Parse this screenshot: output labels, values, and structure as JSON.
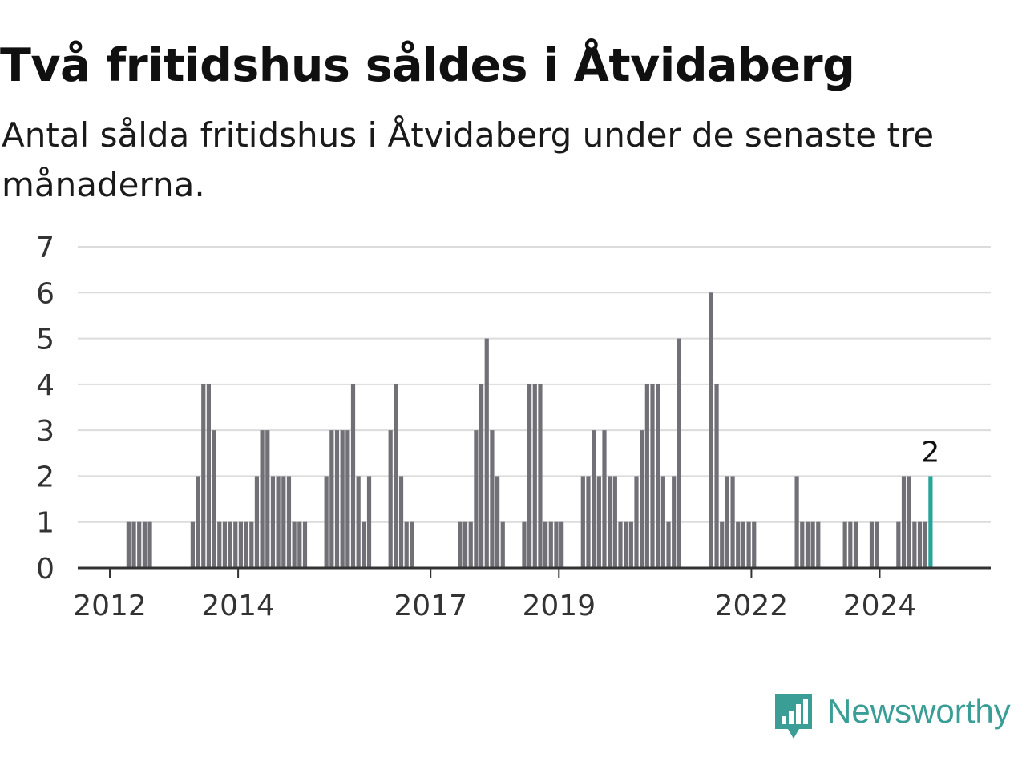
{
  "header": {
    "title": "Två fritidshus såldes i Åtvidaberg",
    "subtitle": "Antal sålda fritidshus i Åtvidaberg under de senaste tre månaderna."
  },
  "brand": {
    "name": "Newsworthy",
    "logo_icon": "bar-chart-badge-icon",
    "color": "#3a9e96"
  },
  "chart_data": {
    "type": "bar",
    "x_start": "2011-07",
    "x_end": "2024-12",
    "y_ticks": [
      "0",
      "1",
      "2",
      "3",
      "4",
      "5",
      "6",
      "7"
    ],
    "ylim": [
      0,
      7
    ],
    "grid": true,
    "x_ticks": [
      {
        "label": "2012",
        "month": "2012-01"
      },
      {
        "label": "2014",
        "month": "2014-01"
      },
      {
        "label": "2017",
        "month": "2017-01"
      },
      {
        "label": "2019",
        "month": "2019-01"
      },
      {
        "label": "2022",
        "month": "2022-01"
      },
      {
        "label": "2024",
        "month": "2024-01"
      }
    ],
    "bar_color": "#707076",
    "highlight_color": "#26a69a",
    "annotation": {
      "month": "2024-10",
      "text": "2"
    },
    "months": [
      "2012-04",
      "2012-05",
      "2012-06",
      "2012-07",
      "2012-08",
      "2013-04",
      "2013-05",
      "2013-06",
      "2013-07",
      "2013-08",
      "2013-09",
      "2013-10",
      "2013-11",
      "2013-12",
      "2014-01",
      "2014-02",
      "2014-03",
      "2014-04",
      "2014-05",
      "2014-06",
      "2014-07",
      "2014-08",
      "2014-09",
      "2014-10",
      "2014-11",
      "2014-12",
      "2015-01",
      "2015-05",
      "2015-06",
      "2015-07",
      "2015-08",
      "2015-09",
      "2015-10",
      "2015-11",
      "2015-12",
      "2016-01",
      "2016-05",
      "2016-06",
      "2016-07",
      "2016-08",
      "2016-09",
      "2017-06",
      "2017-07",
      "2017-08",
      "2017-09",
      "2017-10",
      "2017-11",
      "2017-12",
      "2018-01",
      "2018-02",
      "2018-06",
      "2018-07",
      "2018-08",
      "2018-09",
      "2018-10",
      "2018-11",
      "2018-12",
      "2019-01",
      "2019-05",
      "2019-06",
      "2019-07",
      "2019-08",
      "2019-09",
      "2019-10",
      "2019-11",
      "2019-12",
      "2020-01",
      "2020-02",
      "2020-03",
      "2020-04",
      "2020-05",
      "2020-06",
      "2020-07",
      "2020-08",
      "2020-09",
      "2020-10",
      "2020-11",
      "2021-05",
      "2021-06",
      "2021-07",
      "2021-08",
      "2021-09",
      "2021-10",
      "2021-11",
      "2021-12",
      "2022-01",
      "2022-09",
      "2022-10",
      "2022-11",
      "2022-12",
      "2023-01",
      "2023-06",
      "2023-07",
      "2023-08",
      "2023-11",
      "2023-12",
      "2024-04",
      "2024-05",
      "2024-06",
      "2024-07",
      "2024-08",
      "2024-09",
      "2024-10"
    ],
    "values": [
      1,
      1,
      1,
      1,
      1,
      1,
      2,
      4,
      4,
      3,
      1,
      1,
      1,
      1,
      1,
      1,
      1,
      2,
      3,
      3,
      2,
      2,
      2,
      2,
      1,
      1,
      1,
      2,
      3,
      3,
      3,
      3,
      4,
      2,
      1,
      2,
      3,
      4,
      2,
      1,
      1,
      1,
      1,
      1,
      3,
      4,
      5,
      3,
      2,
      1,
      1,
      4,
      4,
      4,
      1,
      1,
      1,
      1,
      2,
      2,
      3,
      2,
      3,
      2,
      2,
      1,
      1,
      1,
      2,
      3,
      4,
      4,
      4,
      2,
      1,
      2,
      5,
      6,
      4,
      1,
      2,
      2,
      1,
      1,
      1,
      1,
      2,
      1,
      1,
      1,
      1,
      1,
      1,
      1,
      1,
      1,
      1,
      2,
      2,
      1,
      1,
      1,
      2
    ]
  }
}
